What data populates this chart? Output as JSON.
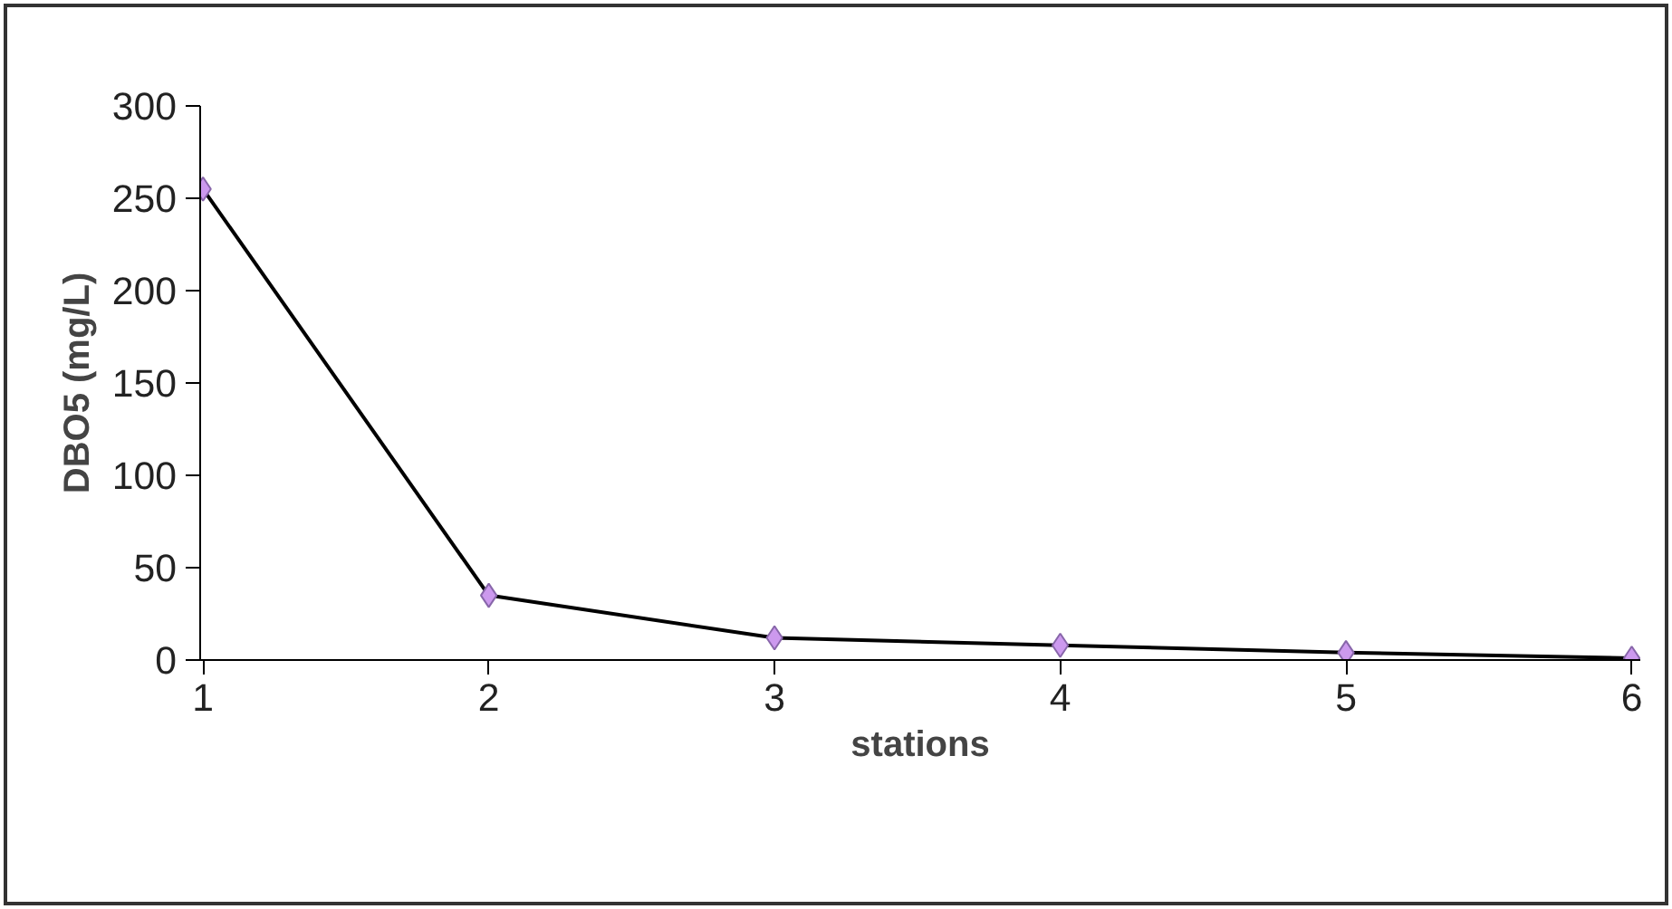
{
  "chart_data": {
    "type": "line",
    "xlabel": "stations",
    "ylabel": "DBO5 (mg/L)",
    "categories": [
      "1",
      "2",
      "3",
      "4",
      "5",
      "6"
    ],
    "series": [
      {
        "color": "#cc99ee",
        "values": [
          255,
          35,
          12,
          8,
          4,
          1
        ]
      }
    ],
    "ylim": [
      0,
      300
    ],
    "yticks": [
      0,
      50,
      100,
      150,
      200,
      250,
      300
    ],
    "grid": false,
    "marker": "diamond",
    "line_style": "solid"
  }
}
